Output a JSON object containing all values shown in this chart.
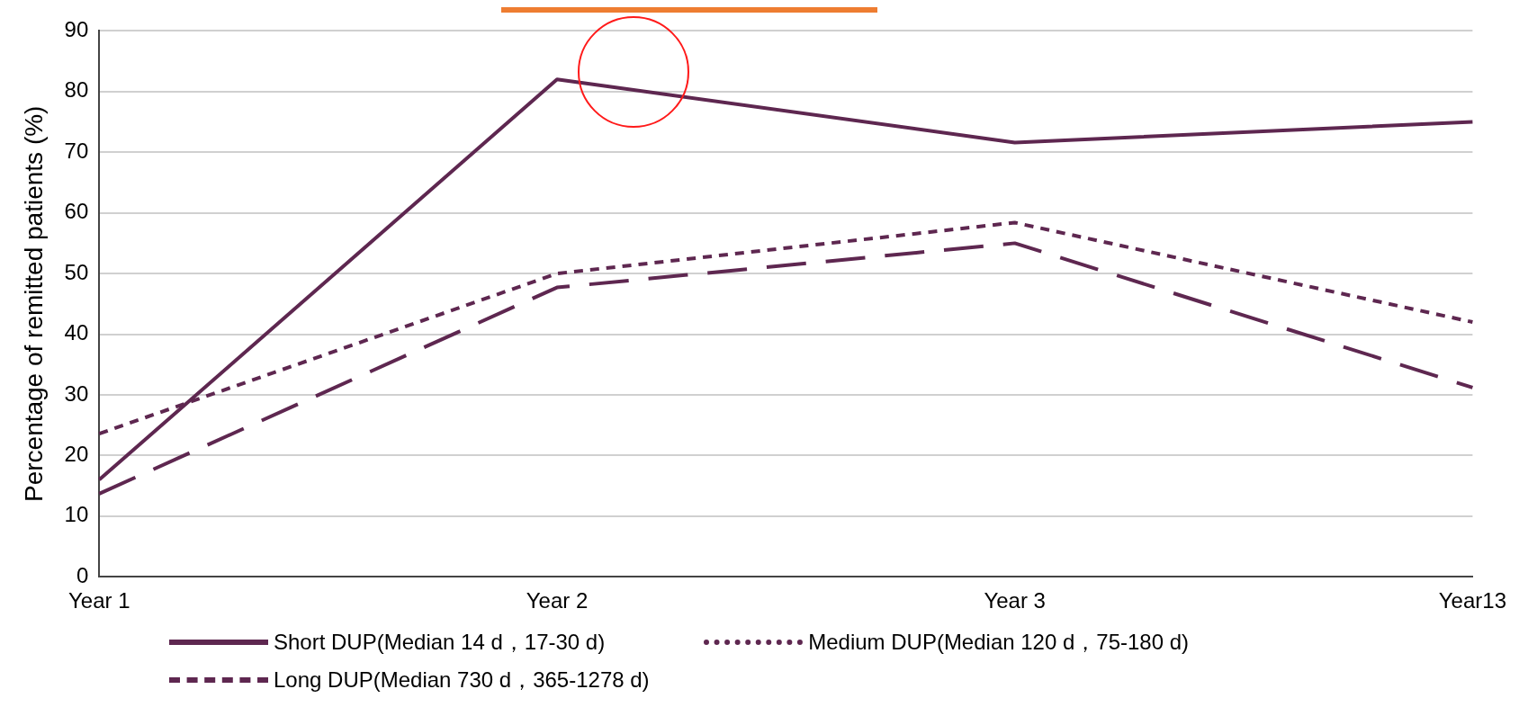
{
  "chart_data": {
    "type": "line",
    "ylabel": "Percentage of remitted patients (%)",
    "categories": [
      "Year 1",
      "Year 2",
      "Year 3",
      "Year13"
    ],
    "ylim": [
      0,
      90
    ],
    "yticks": [
      0,
      10,
      20,
      30,
      40,
      50,
      60,
      70,
      80,
      90
    ],
    "grid": "y",
    "legend": "bottom",
    "marker": "none",
    "series": [
      {
        "name": "Short DUP(Median 14 d，17-30 d)",
        "color": "#5e2750",
        "line_style": "solid",
        "values": [
          16,
          82,
          71.6,
          75
        ]
      },
      {
        "name": "Medium DUP(Median 120 d，75-180 d)",
        "color": "#5e2750",
        "line_style": "dotted",
        "values": [
          23.6,
          50,
          58.4,
          42
        ]
      },
      {
        "name": "Long DUP(Median 730 d，365-1278 d)",
        "color": "#5e2750",
        "line_style": "dashed",
        "values": [
          13.7,
          47.7,
          55,
          31.2
        ]
      }
    ]
  }
}
